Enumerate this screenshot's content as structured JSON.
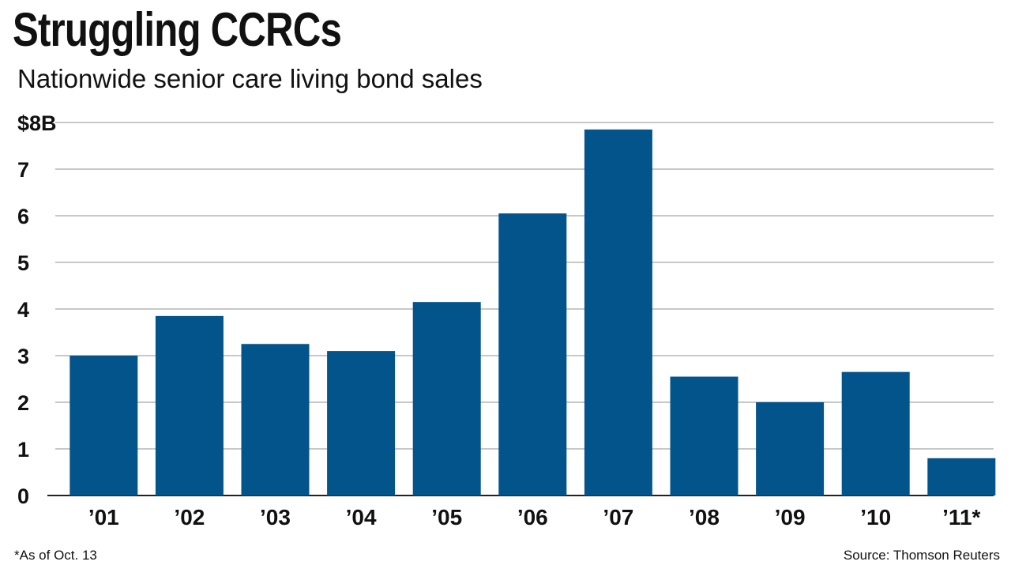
{
  "chart_data": {
    "type": "bar",
    "title": "Struggling CCRCs",
    "subtitle": "Nationwide senior care living bond sales",
    "categories": [
      "’01",
      "’02",
      "’03",
      "’04",
      "’05",
      "’06",
      "’07",
      "’08",
      "’09",
      "’10",
      "’11*"
    ],
    "values": [
      3.0,
      3.85,
      3.25,
      3.1,
      4.15,
      6.05,
      7.85,
      2.55,
      2.0,
      2.65,
      0.8
    ],
    "ylim": [
      0,
      8
    ],
    "yticks": [
      0,
      1,
      2,
      3,
      4,
      5,
      6,
      7,
      8
    ],
    "ytick_labels": [
      "0",
      "1",
      "2",
      "3",
      "4",
      "5",
      "6",
      "7",
      "$8B"
    ],
    "xlabel": "",
    "ylabel": "",
    "grid": true,
    "bar_color": "#04548c",
    "grid_color": "#b5b5b5"
  },
  "footnote": "*As of Oct. 13",
  "source": "Source: Thomson Reuters"
}
